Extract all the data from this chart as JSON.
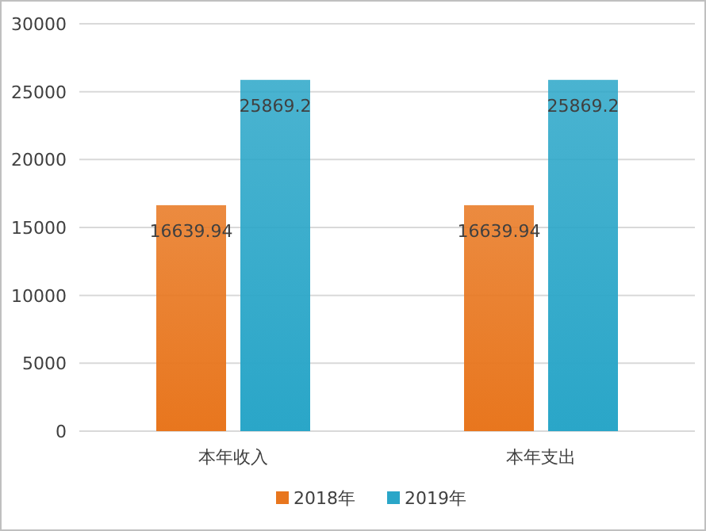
{
  "chart_data": {
    "type": "bar",
    "categories": [
      "本年收入",
      "本年支出"
    ],
    "series": [
      {
        "name": "2018年",
        "color": "#e8761e",
        "values": [
          16639.94,
          16639.94
        ]
      },
      {
        "name": "2019年",
        "color": "#2aa6c8",
        "values": [
          25869.2,
          25869.2
        ]
      }
    ],
    "ylim": [
      0,
      30000
    ],
    "yticks": [
      0,
      5000,
      10000,
      15000,
      20000,
      25000,
      30000
    ],
    "grid": "y",
    "legend": "bottom",
    "data_labels": true
  }
}
